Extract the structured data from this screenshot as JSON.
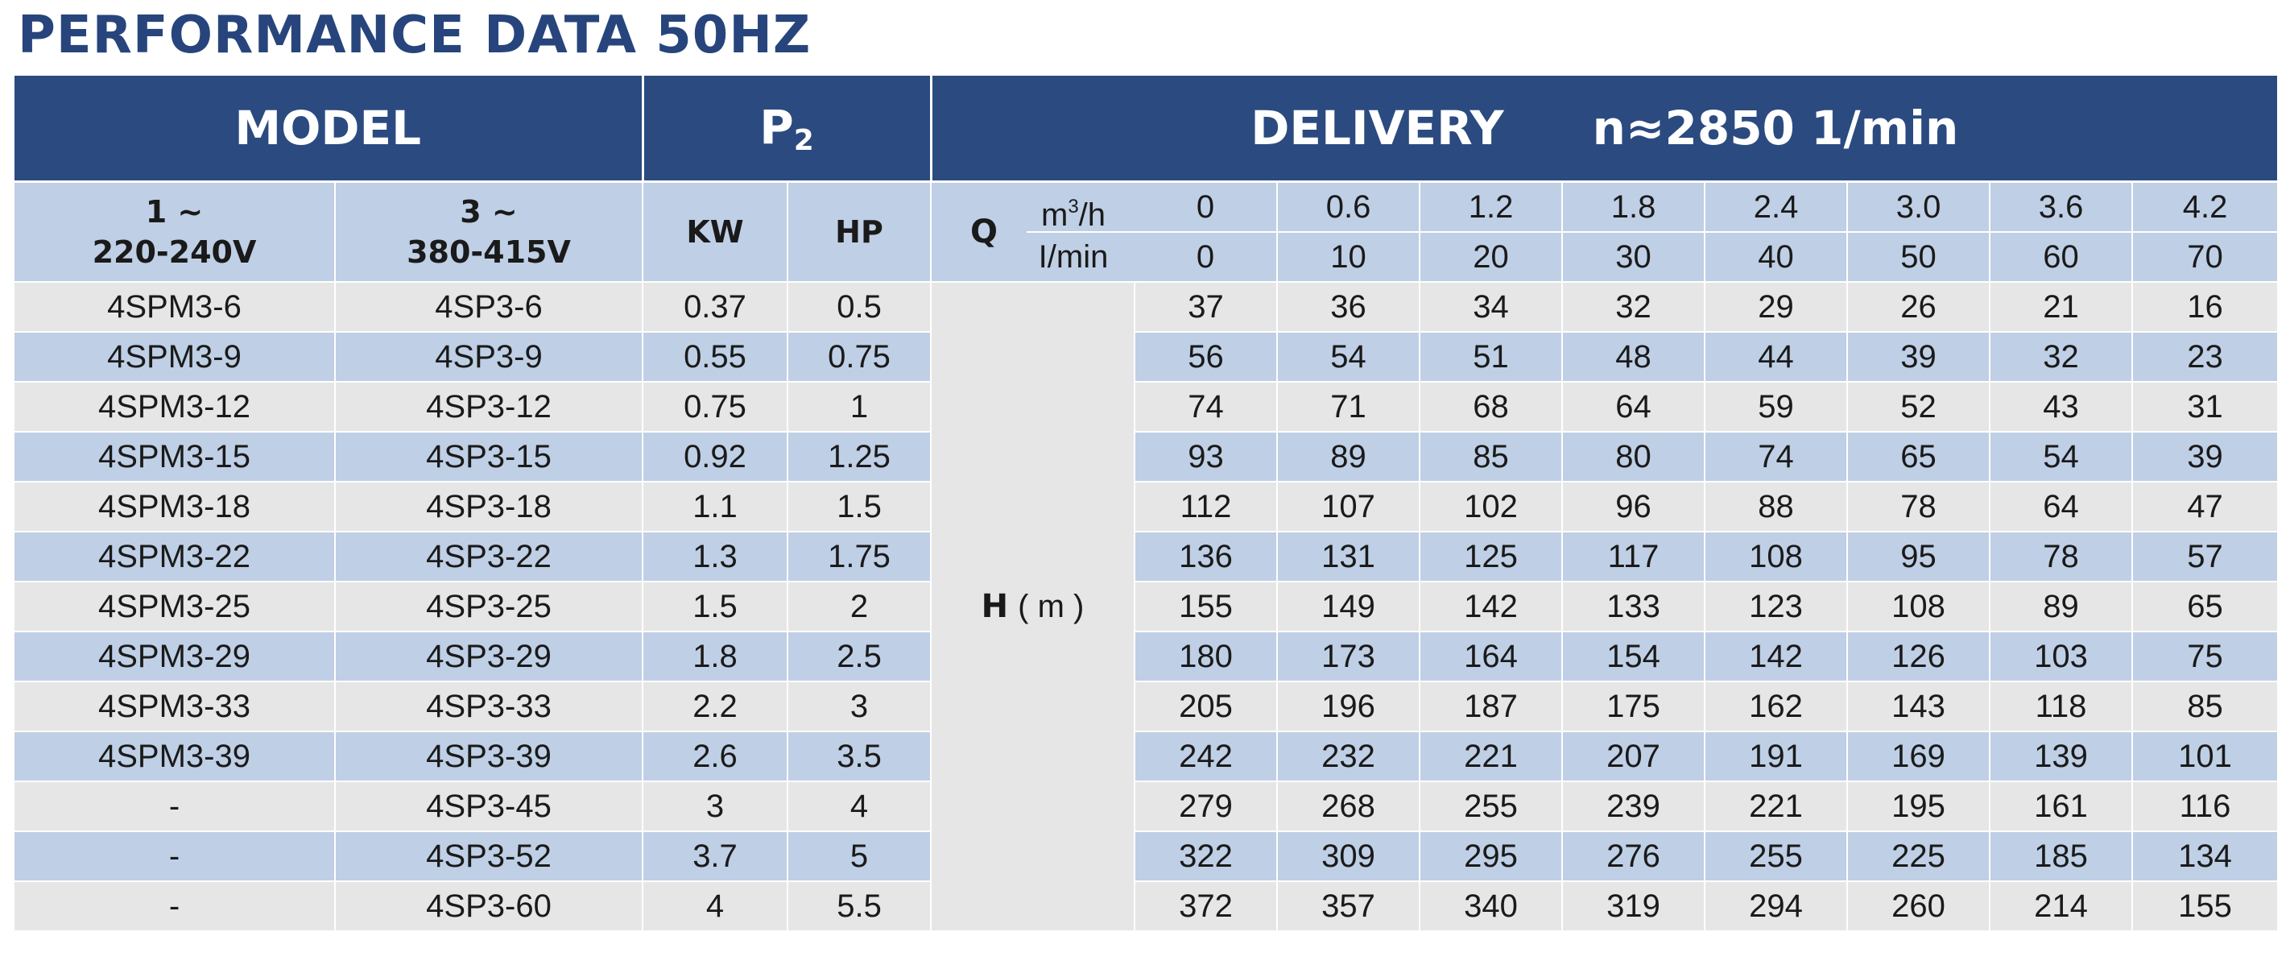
{
  "title": "PERFORMANCE DATA 50HZ",
  "header": {
    "model": "MODEL",
    "p2_main": "P",
    "p2_sub": "2",
    "delivery": "DELIVERY",
    "speed": "n≈2850 1/min"
  },
  "subheader": {
    "single_phase_line1": "1 ~",
    "single_phase_line2": "220-240V",
    "three_phase_line1": "3 ~",
    "three_phase_line2": "380-415V",
    "kw": "KW",
    "hp": "HP",
    "q_label": "Q",
    "q_unit1_base": "m",
    "q_unit1_sup": "3",
    "q_unit1_tail": "/h",
    "q_unit2": "I/min"
  },
  "flow_m3h": [
    "0",
    "0.6",
    "1.2",
    "1.8",
    "2.4",
    "3.0",
    "3.6",
    "4.2"
  ],
  "flow_lmin": [
    "0",
    "10",
    "20",
    "30",
    "40",
    "50",
    "60",
    "70"
  ],
  "head_label": "H",
  "head_unit": "( m )",
  "rows": [
    {
      "single": "4SPM3-6",
      "three": "4SP3-6",
      "kw": "0.37",
      "hp": "0.5",
      "h": [
        "37",
        "36",
        "34",
        "32",
        "29",
        "26",
        "21",
        "16"
      ]
    },
    {
      "single": "4SPM3-9",
      "three": "4SP3-9",
      "kw": "0.55",
      "hp": "0.75",
      "h": [
        "56",
        "54",
        "51",
        "48",
        "44",
        "39",
        "32",
        "23"
      ]
    },
    {
      "single": "4SPM3-12",
      "three": "4SP3-12",
      "kw": "0.75",
      "hp": "1",
      "h": [
        "74",
        "71",
        "68",
        "64",
        "59",
        "52",
        "43",
        "31"
      ]
    },
    {
      "single": "4SPM3-15",
      "three": "4SP3-15",
      "kw": "0.92",
      "hp": "1.25",
      "h": [
        "93",
        "89",
        "85",
        "80",
        "74",
        "65",
        "54",
        "39"
      ]
    },
    {
      "single": "4SPM3-18",
      "three": "4SP3-18",
      "kw": "1.1",
      "hp": "1.5",
      "h": [
        "112",
        "107",
        "102",
        "96",
        "88",
        "78",
        "64",
        "47"
      ]
    },
    {
      "single": "4SPM3-22",
      "three": "4SP3-22",
      "kw": "1.3",
      "hp": "1.75",
      "h": [
        "136",
        "131",
        "125",
        "117",
        "108",
        "95",
        "78",
        "57"
      ]
    },
    {
      "single": "4SPM3-25",
      "three": "4SP3-25",
      "kw": "1.5",
      "hp": "2",
      "h": [
        "155",
        "149",
        "142",
        "133",
        "123",
        "108",
        "89",
        "65"
      ]
    },
    {
      "single": "4SPM3-29",
      "three": "4SP3-29",
      "kw": "1.8",
      "hp": "2.5",
      "h": [
        "180",
        "173",
        "164",
        "154",
        "142",
        "126",
        "103",
        "75"
      ]
    },
    {
      "single": "4SPM3-33",
      "three": "4SP3-33",
      "kw": "2.2",
      "hp": "3",
      "h": [
        "205",
        "196",
        "187",
        "175",
        "162",
        "143",
        "118",
        "85"
      ]
    },
    {
      "single": "4SPM3-39",
      "three": "4SP3-39",
      "kw": "2.6",
      "hp": "3.5",
      "h": [
        "242",
        "232",
        "221",
        "207",
        "191",
        "169",
        "139",
        "101"
      ]
    },
    {
      "single": "-",
      "three": "4SP3-45",
      "kw": "3",
      "hp": "4",
      "h": [
        "279",
        "268",
        "255",
        "239",
        "221",
        "195",
        "161",
        "116"
      ]
    },
    {
      "single": "-",
      "three": "4SP3-52",
      "kw": "3.7",
      "hp": "5",
      "h": [
        "322",
        "309",
        "295",
        "276",
        "255",
        "225",
        "185",
        "134"
      ]
    },
    {
      "single": "-",
      "three": "4SP3-60",
      "kw": "4",
      "hp": "5.5",
      "h": [
        "372",
        "357",
        "340",
        "319",
        "294",
        "260",
        "214",
        "155"
      ]
    }
  ],
  "colors": {
    "header_bg": "#2b4a80",
    "title_text": "#27457c",
    "band_blue": "#bfcfe5",
    "band_grey": "#e6e6e6"
  }
}
